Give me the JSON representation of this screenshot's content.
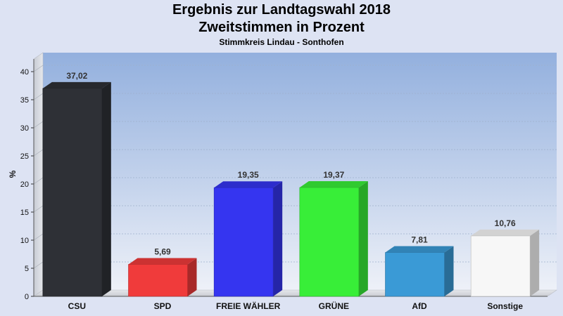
{
  "chart_data": {
    "type": "bar",
    "title": "Ergebnis zur Landtagswahl 2018",
    "subtitle_line": "Zweitstimmen in Prozent",
    "subtitle": "Stimmkreis Lindau - Sonthofen",
    "xlabel": "",
    "ylabel": "%",
    "ylim": [
      0,
      40
    ],
    "yticks": [
      0,
      5,
      10,
      15,
      20,
      25,
      30,
      35,
      40
    ],
    "categories": [
      "CSU",
      "SPD",
      "FREIE WÄHLER",
      "GRÜNE",
      "AfD",
      "Sonstige"
    ],
    "values": [
      37.02,
      5.69,
      19.35,
      19.37,
      7.81,
      10.76
    ],
    "value_labels": [
      "37,02",
      "5,69",
      "19,35",
      "19,37",
      "7,81",
      "10,76"
    ],
    "colors": [
      "#2e3036",
      "#f03b3b",
      "#3535f0",
      "#38ee38",
      "#3a9ad6",
      "#f7f7f7"
    ],
    "grid": true,
    "legend": "none"
  }
}
